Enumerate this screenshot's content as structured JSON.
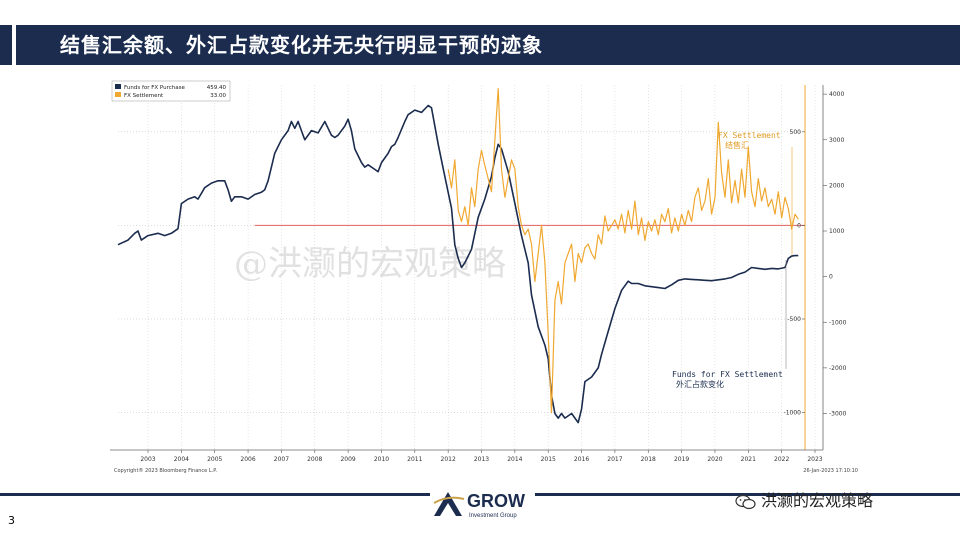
{
  "slide": {
    "title": "结售汇余额、外汇占款变化并无央行明显干预的迹象",
    "page_number": "3",
    "watermark": "@洪灏的宏观策略",
    "footer_brand": "洪灏的宏观策略",
    "logo": {
      "name": "GROW",
      "sub": "Investment Group"
    }
  },
  "colors": {
    "purchase": "#1b2c4e",
    "settlement": "#f0a830",
    "zero_line": "#e06060",
    "title_bg": "#1b2c4e"
  },
  "chart_data": {
    "type": "line",
    "x_ticks": [
      "2003",
      "2004",
      "2005",
      "2006",
      "2007",
      "2008",
      "2009",
      "2010",
      "2011",
      "2012",
      "2013",
      "2014",
      "2015",
      "2016",
      "2017",
      "2018",
      "2019",
      "2020",
      "2021",
      "2022",
      "2023"
    ],
    "x_range": [
      2002.6,
      2023.2
    ],
    "legend": [
      {
        "label": "Funds for FX Purchase",
        "value": "459.40"
      },
      {
        "label": "FX Settlement",
        "value": "33.00"
      }
    ],
    "annotations": [
      {
        "text": "FX Settlement",
        "sub": "结售汇",
        "series": "FX Settlement"
      },
      {
        "text": "Funds for FX Settlement",
        "sub": "外汇占款变化",
        "series": "Funds for FX Purchase"
      }
    ],
    "left_axis": {
      "ticks": [
        500,
        0,
        -500,
        -1000
      ],
      "labels": [
        "500",
        "0",
        "-500",
        "-1000"
      ],
      "range": [
        -1200,
        750
      ]
    },
    "right_axis": {
      "ticks": [
        4000,
        3000,
        2000,
        1000,
        0,
        -1000,
        -2000,
        -3000
      ],
      "labels": [
        "4000",
        "3000",
        "2000",
        "1000",
        "0",
        "-1000",
        "-2000",
        "-3000"
      ],
      "range": [
        -3800,
        4200
      ]
    },
    "copyright": "Copyright® 2023 Bloomberg Finance L.P.",
    "timestamp": "26-Jan-2023 17:10:10",
    "series": [
      {
        "name": "Funds for FX Purchase",
        "axis": "right",
        "points": [
          [
            2002.6,
            700
          ],
          [
            2002.9,
            800
          ],
          [
            2003.1,
            950
          ],
          [
            2003.2,
            1000
          ],
          [
            2003.3,
            800
          ],
          [
            2003.5,
            900
          ],
          [
            2003.8,
            950
          ],
          [
            2004.0,
            900
          ],
          [
            2004.2,
            950
          ],
          [
            2004.4,
            1050
          ],
          [
            2004.5,
            1600
          ],
          [
            2004.7,
            1700
          ],
          [
            2004.9,
            1750
          ],
          [
            2005.0,
            1700
          ],
          [
            2005.2,
            1950
          ],
          [
            2005.4,
            2050
          ],
          [
            2005.6,
            2100
          ],
          [
            2005.8,
            2100
          ],
          [
            2005.9,
            1900
          ],
          [
            2006.0,
            1650
          ],
          [
            2006.1,
            1750
          ],
          [
            2006.3,
            1750
          ],
          [
            2006.5,
            1700
          ],
          [
            2006.7,
            1800
          ],
          [
            2006.9,
            1850
          ],
          [
            2007.0,
            1900
          ],
          [
            2007.1,
            2100
          ],
          [
            2007.3,
            2700
          ],
          [
            2007.5,
            3000
          ],
          [
            2007.7,
            3200
          ],
          [
            2007.8,
            3400
          ],
          [
            2007.9,
            3250
          ],
          [
            2008.0,
            3400
          ],
          [
            2008.1,
            3200
          ],
          [
            2008.2,
            3000
          ],
          [
            2008.4,
            3200
          ],
          [
            2008.6,
            3150
          ],
          [
            2008.8,
            3400
          ],
          [
            2008.9,
            3250
          ],
          [
            2009.0,
            3100
          ],
          [
            2009.1,
            3050
          ],
          [
            2009.2,
            3100
          ],
          [
            2009.4,
            3300
          ],
          [
            2009.5,
            3450
          ],
          [
            2009.6,
            3200
          ],
          [
            2009.7,
            2800
          ],
          [
            2009.9,
            2500
          ],
          [
            2010.0,
            2400
          ],
          [
            2010.1,
            2450
          ],
          [
            2010.3,
            2350
          ],
          [
            2010.4,
            2300
          ],
          [
            2010.5,
            2500
          ],
          [
            2010.7,
            2700
          ],
          [
            2010.8,
            2850
          ],
          [
            2010.9,
            2900
          ],
          [
            2011.0,
            3050
          ],
          [
            2011.2,
            3400
          ],
          [
            2011.3,
            3550
          ],
          [
            2011.5,
            3650
          ],
          [
            2011.7,
            3600
          ],
          [
            2011.9,
            3750
          ],
          [
            2012.0,
            3700
          ],
          [
            2012.2,
            2900
          ],
          [
            2012.4,
            2200
          ],
          [
            2012.6,
            1500
          ],
          [
            2012.7,
            700
          ],
          [
            2012.8,
            400
          ],
          [
            2012.9,
            200
          ],
          [
            2013.0,
            300
          ],
          [
            2013.2,
            600
          ],
          [
            2013.4,
            1300
          ],
          [
            2013.6,
            1700
          ],
          [
            2013.8,
            2200
          ],
          [
            2013.9,
            2600
          ],
          [
            2014.0,
            2900
          ],
          [
            2014.1,
            2800
          ],
          [
            2014.3,
            2300
          ],
          [
            2014.5,
            1600
          ],
          [
            2014.7,
            900
          ],
          [
            2014.9,
            300
          ],
          [
            2015.0,
            -400
          ],
          [
            2015.2,
            -1100
          ],
          [
            2015.4,
            -1500
          ],
          [
            2015.5,
            -1800
          ],
          [
            2015.6,
            -2600
          ],
          [
            2015.7,
            -3000
          ],
          [
            2015.8,
            -3100
          ],
          [
            2015.9,
            -3000
          ],
          [
            2016.0,
            -3100
          ],
          [
            2016.2,
            -3000
          ],
          [
            2016.4,
            -3200
          ],
          [
            2016.5,
            -2900
          ],
          [
            2016.6,
            -2300
          ],
          [
            2016.8,
            -2200
          ],
          [
            2017.0,
            -2000
          ],
          [
            2017.1,
            -1700
          ],
          [
            2017.3,
            -1200
          ],
          [
            2017.5,
            -700
          ],
          [
            2017.7,
            -300
          ],
          [
            2017.9,
            -100
          ],
          [
            2018.0,
            -150
          ],
          [
            2018.2,
            -150
          ],
          [
            2018.4,
            -200
          ],
          [
            2018.6,
            -220
          ],
          [
            2018.8,
            -240
          ],
          [
            2019.0,
            -260
          ],
          [
            2019.2,
            -180
          ],
          [
            2019.4,
            -80
          ],
          [
            2019.6,
            -50
          ],
          [
            2019.8,
            -60
          ],
          [
            2020.0,
            -70
          ],
          [
            2020.2,
            -80
          ],
          [
            2020.4,
            -90
          ],
          [
            2020.6,
            -70
          ],
          [
            2020.8,
            -50
          ],
          [
            2021.0,
            -20
          ],
          [
            2021.2,
            50
          ],
          [
            2021.4,
            100
          ],
          [
            2021.6,
            200
          ],
          [
            2021.8,
            180
          ],
          [
            2022.0,
            160
          ],
          [
            2022.2,
            180
          ],
          [
            2022.4,
            170
          ],
          [
            2022.6,
            200
          ],
          [
            2022.7,
            400
          ],
          [
            2022.8,
            450
          ],
          [
            2022.9,
            460
          ],
          [
            2023.0,
            460
          ]
        ]
      },
      {
        "name": "FX Settlement",
        "axis": "left",
        "points": [
          [
            2012.5,
            300
          ],
          [
            2012.6,
            200
          ],
          [
            2012.7,
            350
          ],
          [
            2012.8,
            80
          ],
          [
            2012.9,
            20
          ],
          [
            2013.0,
            100
          ],
          [
            2013.1,
            0
          ],
          [
            2013.2,
            200
          ],
          [
            2013.3,
            100
          ],
          [
            2013.4,
            300
          ],
          [
            2013.5,
            400
          ],
          [
            2013.6,
            320
          ],
          [
            2013.7,
            250
          ],
          [
            2013.8,
            180
          ],
          [
            2013.9,
            450
          ],
          [
            2014.0,
            730
          ],
          [
            2014.1,
            300
          ],
          [
            2014.2,
            150
          ],
          [
            2014.3,
            250
          ],
          [
            2014.4,
            350
          ],
          [
            2014.5,
            300
          ],
          [
            2014.6,
            100
          ],
          [
            2014.7,
            0
          ],
          [
            2014.8,
            -50
          ],
          [
            2014.9,
            -20
          ],
          [
            2015.0,
            -100
          ],
          [
            2015.1,
            -300
          ],
          [
            2015.2,
            -150
          ],
          [
            2015.3,
            0
          ],
          [
            2015.4,
            -200
          ],
          [
            2015.5,
            -580
          ],
          [
            2015.6,
            -1000
          ],
          [
            2015.7,
            -400
          ],
          [
            2015.8,
            -300
          ],
          [
            2015.9,
            -420
          ],
          [
            2016.0,
            -200
          ],
          [
            2016.1,
            -150
          ],
          [
            2016.2,
            -100
          ],
          [
            2016.3,
            -300
          ],
          [
            2016.4,
            -150
          ],
          [
            2016.5,
            -200
          ],
          [
            2016.6,
            -120
          ],
          [
            2016.7,
            -100
          ],
          [
            2016.8,
            -150
          ],
          [
            2016.9,
            -180
          ],
          [
            2017.0,
            -50
          ],
          [
            2017.1,
            -100
          ],
          [
            2017.2,
            50
          ],
          [
            2017.3,
            -30
          ],
          [
            2017.4,
            0
          ],
          [
            2017.5,
            30
          ],
          [
            2017.6,
            -20
          ],
          [
            2017.7,
            60
          ],
          [
            2017.8,
            -40
          ],
          [
            2017.9,
            80
          ],
          [
            2018.0,
            -20
          ],
          [
            2018.1,
            130
          ],
          [
            2018.2,
            -50
          ],
          [
            2018.3,
            40
          ],
          [
            2018.4,
            -80
          ],
          [
            2018.5,
            20
          ],
          [
            2018.6,
            -30
          ],
          [
            2018.7,
            30
          ],
          [
            2018.8,
            -50
          ],
          [
            2018.9,
            60
          ],
          [
            2019.0,
            20
          ],
          [
            2019.1,
            90
          ],
          [
            2019.2,
            -40
          ],
          [
            2019.3,
            40
          ],
          [
            2019.4,
            -30
          ],
          [
            2019.5,
            60
          ],
          [
            2019.6,
            0
          ],
          [
            2019.7,
            80
          ],
          [
            2019.8,
            20
          ],
          [
            2019.9,
            150
          ],
          [
            2020.0,
            200
          ],
          [
            2020.1,
            80
          ],
          [
            2020.2,
            130
          ],
          [
            2020.3,
            250
          ],
          [
            2020.4,
            60
          ],
          [
            2020.5,
            150
          ],
          [
            2020.6,
            550
          ],
          [
            2020.7,
            280
          ],
          [
            2020.8,
            150
          ],
          [
            2020.9,
            350
          ],
          [
            2021.0,
            120
          ],
          [
            2021.1,
            240
          ],
          [
            2021.2,
            120
          ],
          [
            2021.3,
            300
          ],
          [
            2021.4,
            150
          ],
          [
            2021.5,
            420
          ],
          [
            2021.6,
            180
          ],
          [
            2021.7,
            100
          ],
          [
            2021.8,
            250
          ],
          [
            2021.9,
            130
          ],
          [
            2022.0,
            200
          ],
          [
            2022.1,
            100
          ],
          [
            2022.2,
            140
          ],
          [
            2022.3,
            60
          ],
          [
            2022.4,
            180
          ],
          [
            2022.5,
            40
          ],
          [
            2022.6,
            150
          ],
          [
            2022.7,
            90
          ],
          [
            2022.8,
            -20
          ],
          [
            2022.9,
            60
          ],
          [
            2023.0,
            33
          ]
        ]
      }
    ]
  }
}
